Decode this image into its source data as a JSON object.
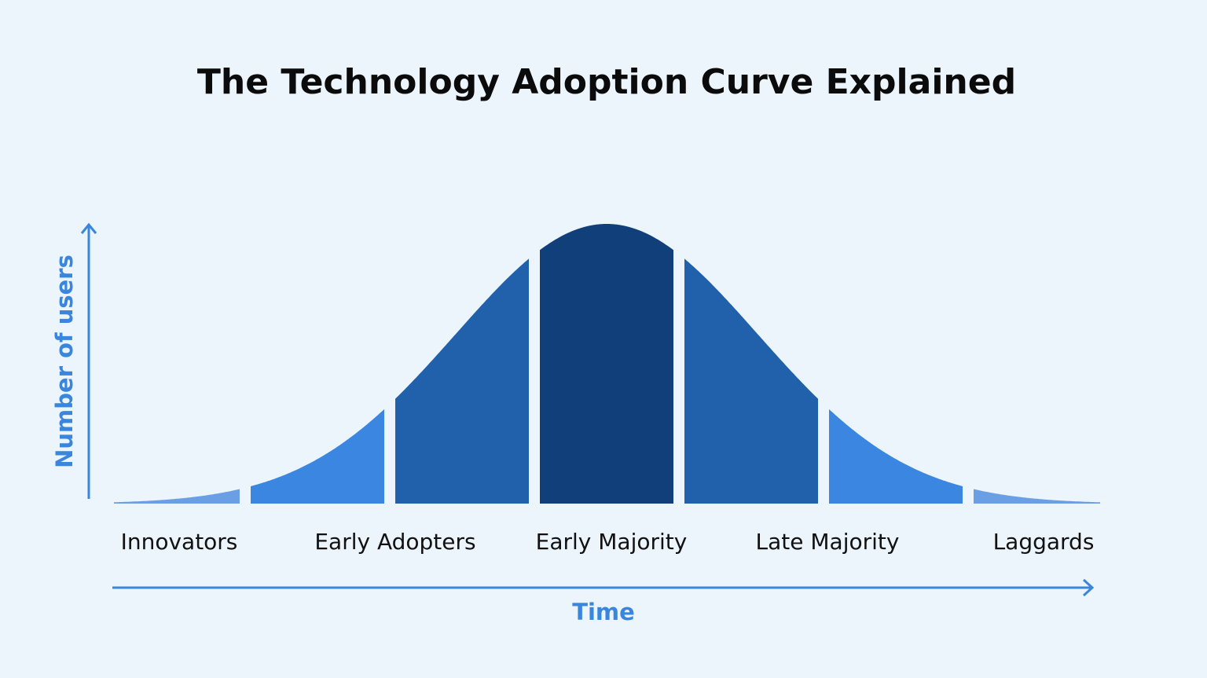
{
  "title": "The Technology Adoption Curve Explained",
  "y_axis": {
    "label": "Number of users"
  },
  "x_axis": {
    "label": "Time"
  },
  "segments": [
    {
      "label": "Innovators"
    },
    {
      "label": "Early Adopters"
    },
    {
      "label": "Early Majority"
    },
    {
      "label": "Late Majority"
    },
    {
      "label": "Laggards"
    }
  ]
}
